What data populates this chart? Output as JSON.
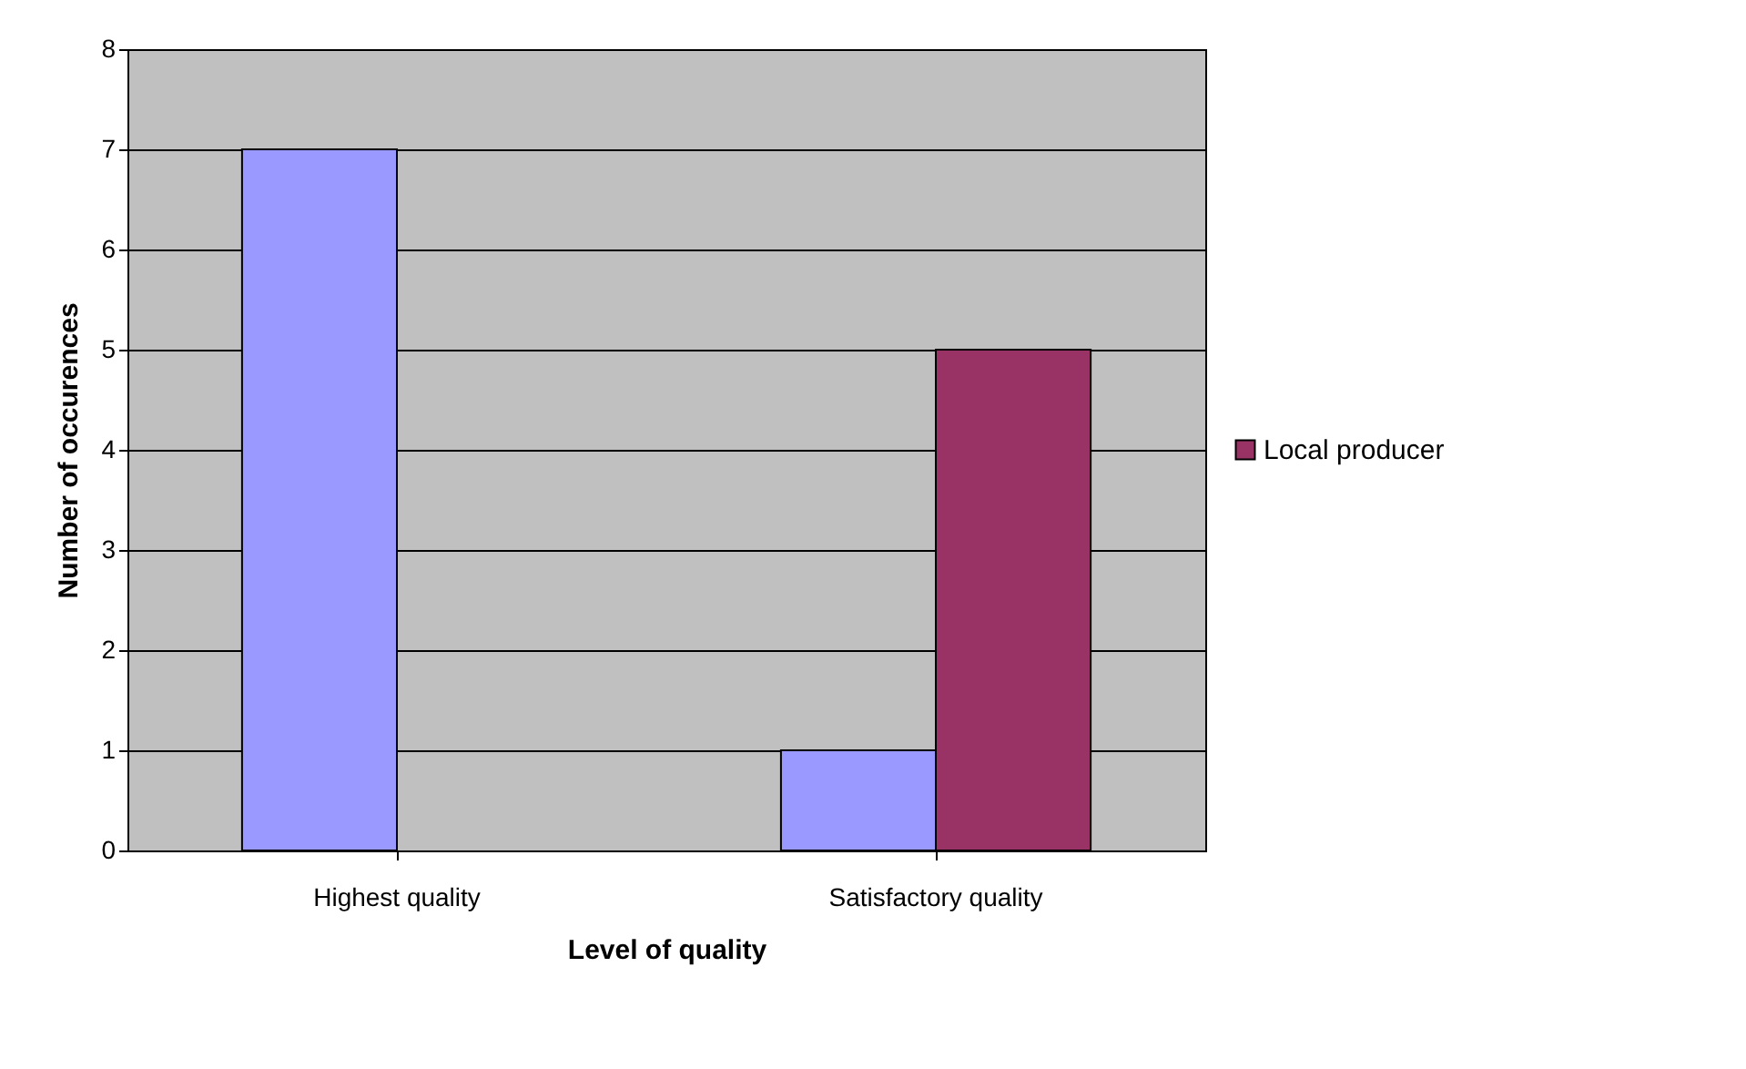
{
  "chart_data": {
    "type": "bar",
    "xlabel": "Level of quality",
    "ylabel": "Number of occurences",
    "categories": [
      "Highest quality",
      "Satisfactory quality"
    ],
    "series": [
      {
        "color": "#9999ff",
        "values": [
          7,
          1
        ]
      },
      {
        "name": "Local producer",
        "color": "#993366",
        "values": [
          null,
          5
        ]
      }
    ],
    "ylim": [
      0,
      8
    ],
    "yticks": [
      0,
      1,
      2,
      3,
      4,
      5,
      6,
      7,
      8
    ],
    "grid": "y",
    "legend": "right"
  }
}
